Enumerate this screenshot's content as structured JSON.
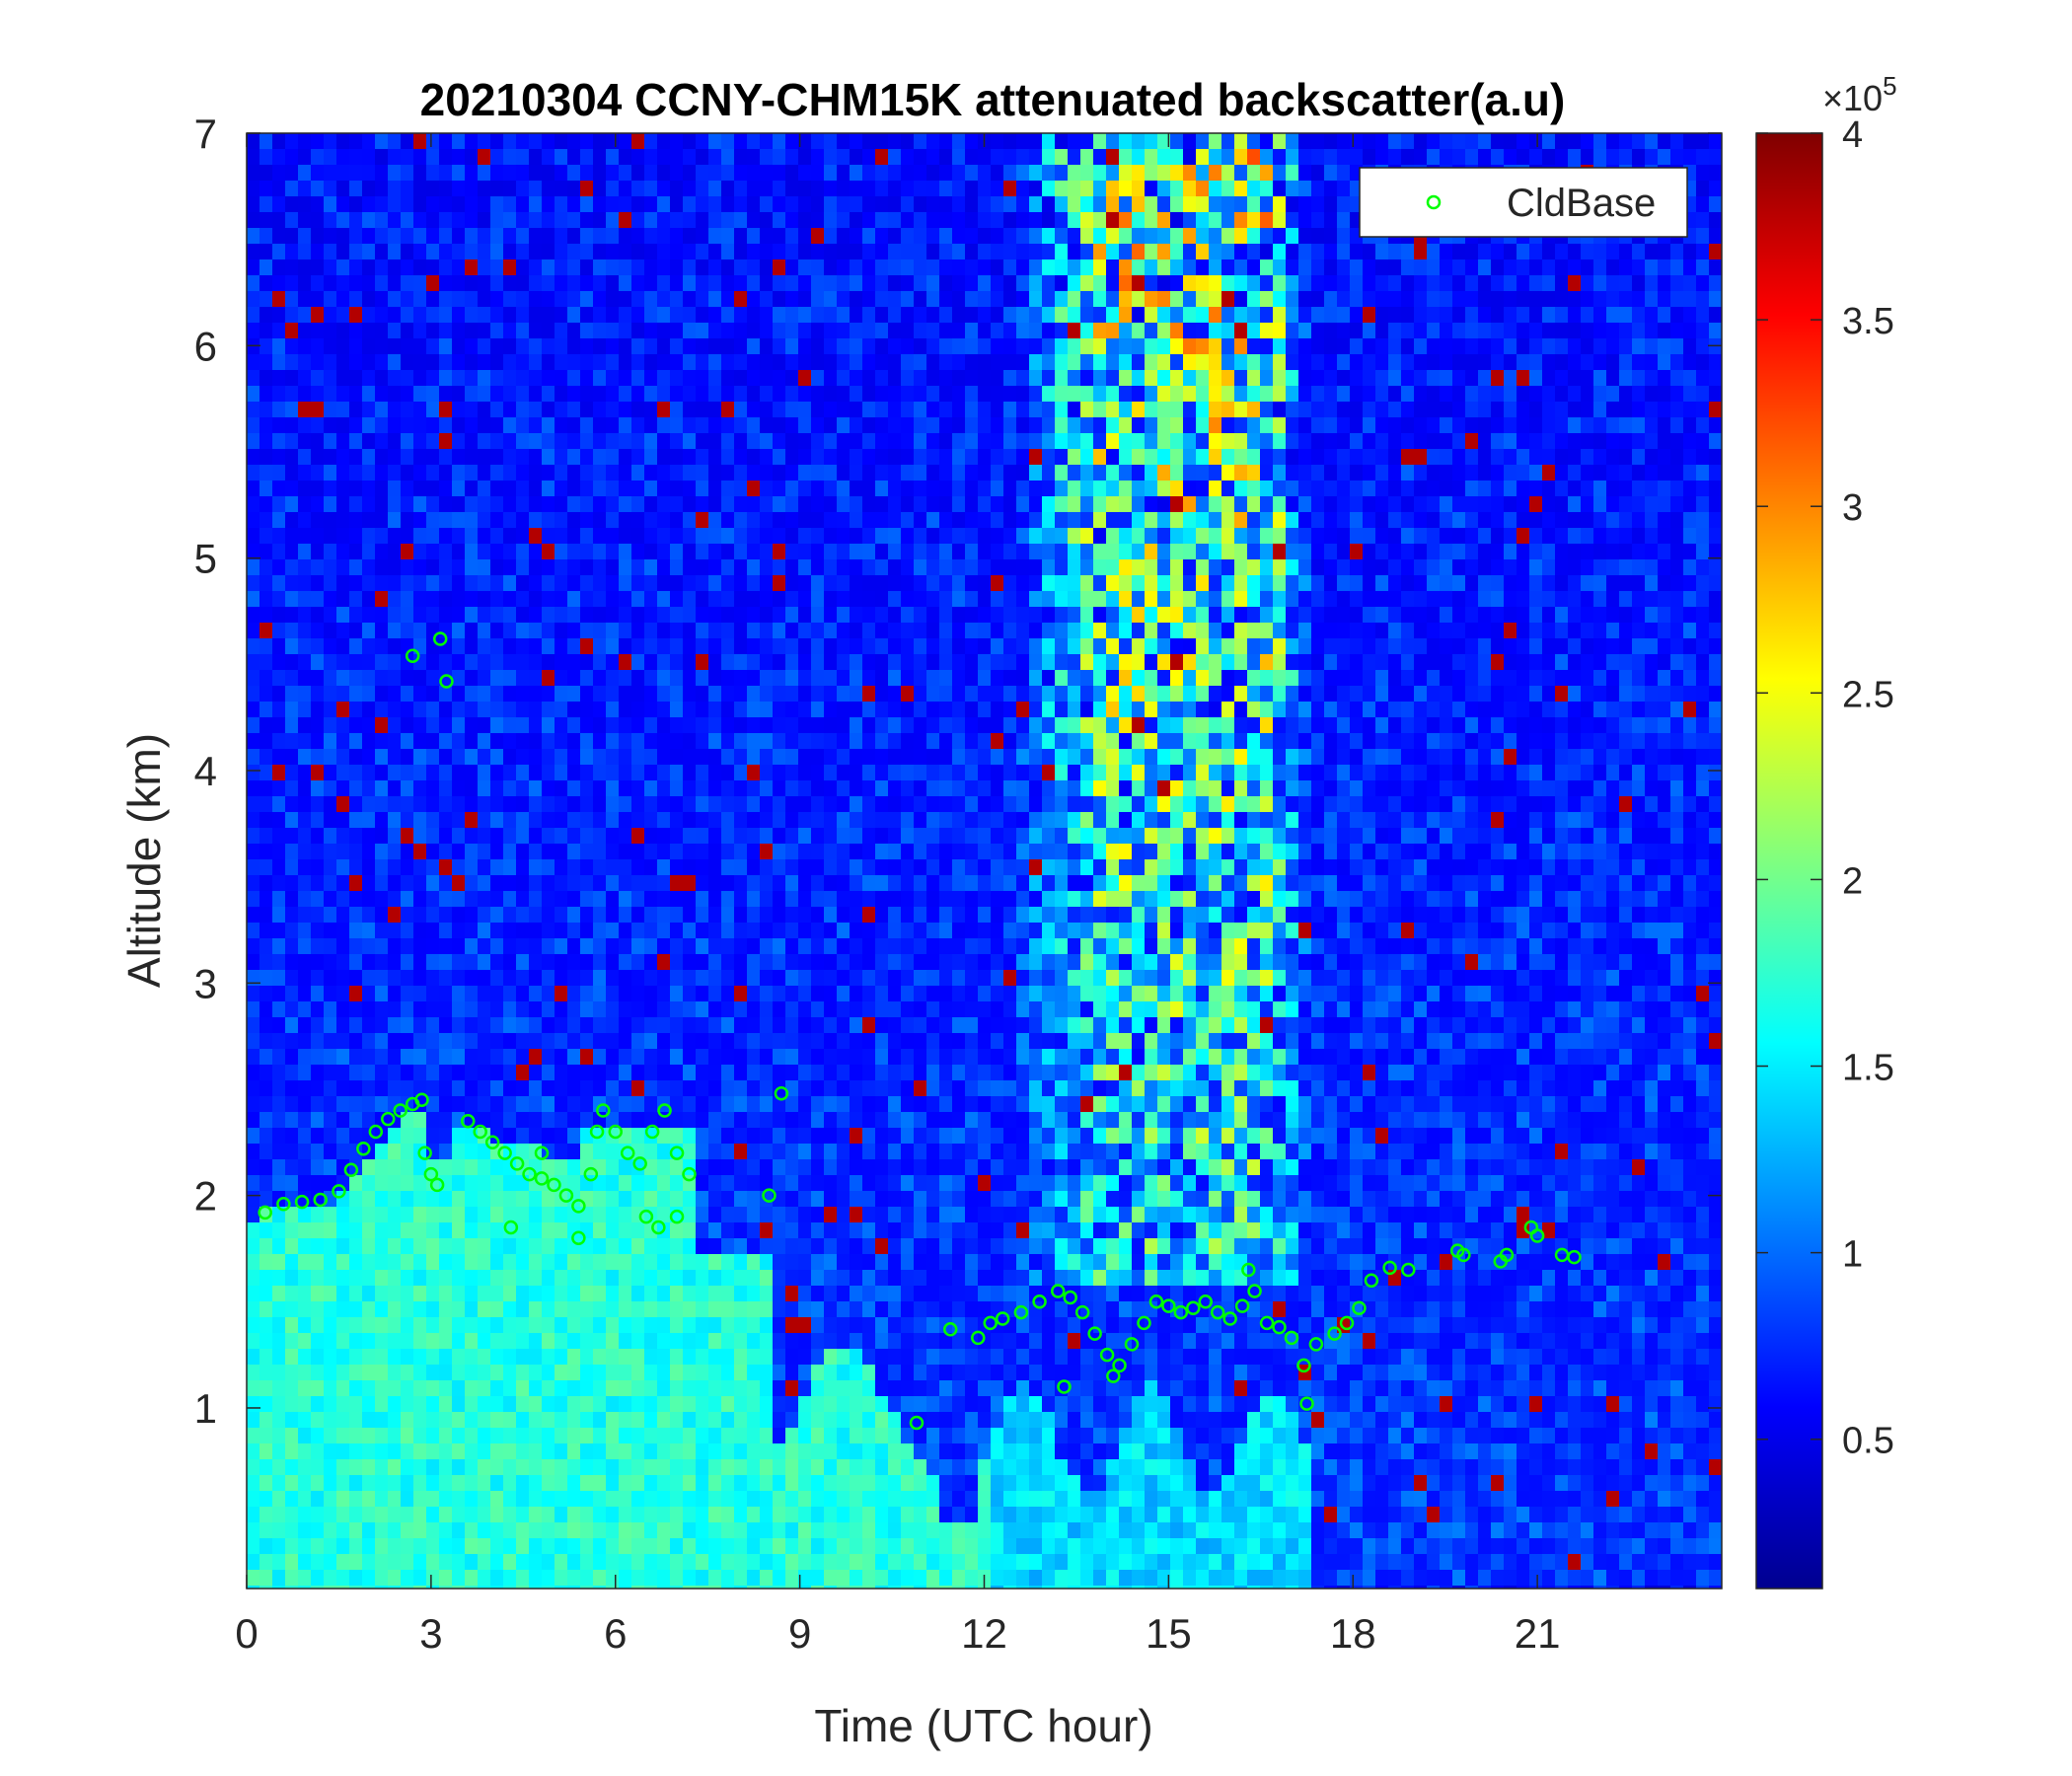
{
  "chart_data": {
    "type": "heatmap",
    "title": "20210304 CCNY-CHM15K attenuated backscatter(a.u)",
    "xlabel": "Time (UTC hour)",
    "ylabel": "Altitude (km)",
    "xlim": [
      0,
      24
    ],
    "ylim": [
      0.15,
      7
    ],
    "x_ticks": [
      0,
      3,
      6,
      9,
      12,
      15,
      18,
      21
    ],
    "x_tick_labels": [
      "0",
      "3",
      "6",
      "9",
      "12",
      "15",
      "18",
      "21"
    ],
    "y_ticks": [
      1,
      2,
      3,
      4,
      5,
      6,
      7
    ],
    "y_tick_labels": [
      "1",
      "2",
      "3",
      "4",
      "5",
      "6",
      "7"
    ],
    "colorbar": {
      "colormap": "jet",
      "range": [
        0.1,
        4
      ],
      "ticks": [
        0.5,
        1,
        1.5,
        2,
        2.5,
        3,
        3.5,
        4
      ],
      "tick_labels": [
        "0.5",
        "1",
        "1.5",
        "2",
        "2.5",
        "3",
        "3.5",
        "4"
      ],
      "exponent_base": "×10",
      "exponent_power": "5"
    },
    "legend": {
      "placement": "top-right",
      "entries": [
        {
          "name": "CldBase",
          "marker": "circle",
          "color": "#00ff00"
        }
      ]
    },
    "series": [
      {
        "name": "CldBase",
        "type": "scatter",
        "color": "#00ff00",
        "points": [
          [
            0.3,
            1.92
          ],
          [
            0.6,
            1.96
          ],
          [
            0.9,
            1.97
          ],
          [
            1.2,
            1.98
          ],
          [
            1.5,
            2.02
          ],
          [
            1.7,
            2.12
          ],
          [
            1.9,
            2.22
          ],
          [
            2.1,
            2.3
          ],
          [
            2.3,
            2.36
          ],
          [
            2.5,
            2.4
          ],
          [
            2.7,
            2.43
          ],
          [
            2.85,
            2.45
          ],
          [
            2.9,
            2.2
          ],
          [
            3.0,
            2.1
          ],
          [
            3.1,
            2.05
          ],
          [
            2.7,
            4.54
          ],
          [
            3.15,
            4.62
          ],
          [
            3.25,
            4.42
          ],
          [
            3.6,
            2.35
          ],
          [
            3.8,
            2.3
          ],
          [
            4.0,
            2.25
          ],
          [
            4.2,
            2.2
          ],
          [
            4.4,
            2.15
          ],
          [
            4.6,
            2.1
          ],
          [
            4.8,
            2.08
          ],
          [
            5.0,
            2.05
          ],
          [
            5.2,
            2.0
          ],
          [
            5.4,
            1.95
          ],
          [
            5.6,
            2.1
          ],
          [
            5.7,
            2.3
          ],
          [
            5.8,
            2.4
          ],
          [
            6.0,
            2.3
          ],
          [
            6.2,
            2.2
          ],
          [
            6.4,
            2.15
          ],
          [
            6.5,
            1.9
          ],
          [
            6.6,
            2.3
          ],
          [
            6.8,
            2.4
          ],
          [
            7.0,
            2.2
          ],
          [
            7.2,
            2.1
          ],
          [
            5.4,
            1.8
          ],
          [
            6.7,
            1.85
          ],
          [
            7.0,
            1.9
          ],
          [
            4.3,
            1.85
          ],
          [
            4.8,
            2.2
          ],
          [
            8.5,
            2.0
          ],
          [
            8.7,
            2.48
          ],
          [
            10.9,
            0.93
          ],
          [
            11.45,
            1.37
          ],
          [
            11.9,
            1.33
          ],
          [
            12.1,
            1.4
          ],
          [
            12.3,
            1.42
          ],
          [
            12.6,
            1.45
          ],
          [
            12.9,
            1.5
          ],
          [
            13.2,
            1.55
          ],
          [
            13.4,
            1.52
          ],
          [
            13.6,
            1.45
          ],
          [
            13.8,
            1.35
          ],
          [
            14.0,
            1.25
          ],
          [
            14.2,
            1.2
          ],
          [
            14.4,
            1.3
          ],
          [
            14.6,
            1.4
          ],
          [
            14.8,
            1.5
          ],
          [
            15.0,
            1.48
          ],
          [
            15.2,
            1.45
          ],
          [
            15.4,
            1.47
          ],
          [
            15.6,
            1.5
          ],
          [
            15.8,
            1.45
          ],
          [
            16.0,
            1.42
          ],
          [
            16.2,
            1.48
          ],
          [
            16.4,
            1.55
          ],
          [
            16.6,
            1.4
          ],
          [
            16.8,
            1.38
          ],
          [
            17.0,
            1.33
          ],
          [
            17.2,
            1.2
          ],
          [
            17.25,
            1.02
          ],
          [
            17.4,
            1.3
          ],
          [
            13.3,
            1.1
          ],
          [
            14.1,
            1.15
          ],
          [
            16.3,
            1.65
          ],
          [
            17.7,
            1.35
          ],
          [
            17.9,
            1.4
          ],
          [
            18.1,
            1.47
          ],
          [
            18.3,
            1.6
          ],
          [
            18.6,
            1.66
          ],
          [
            18.9,
            1.65
          ],
          [
            19.7,
            1.74
          ],
          [
            19.8,
            1.72
          ],
          [
            20.4,
            1.69
          ],
          [
            20.5,
            1.72
          ],
          [
            20.9,
            1.85
          ],
          [
            21.0,
            1.81
          ],
          [
            21.4,
            1.72
          ],
          [
            21.6,
            1.71
          ]
        ]
      }
    ]
  }
}
